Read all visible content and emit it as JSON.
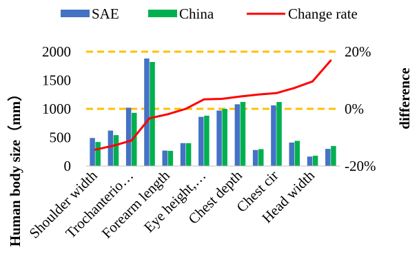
{
  "chart_data": {
    "type": "bar",
    "categories": [
      "Shoulder width",
      "",
      "Trochanterio…",
      "",
      "Forearm length",
      "",
      "Eye height,…",
      "",
      "Chest depth",
      "",
      "Chest cir",
      "",
      "Head width",
      ""
    ],
    "series": [
      {
        "name": "SAE",
        "values": [
          490,
          620,
          1020,
          1880,
          270,
          400,
          860,
          970,
          1080,
          280,
          1060,
          410,
          165,
          300
        ],
        "color": "#4472c4"
      },
      {
        "name": "China",
        "values": [
          420,
          540,
          930,
          1820,
          265,
          400,
          880,
          1000,
          1120,
          295,
          1120,
          440,
          180,
          350
        ],
        "color": "#00b050"
      }
    ],
    "line_series": {
      "name": "Change rate",
      "values": [
        -14.3,
        -12.9,
        -11.1,
        -3.3,
        -1.9,
        0.0,
        3.3,
        3.5,
        4.3,
        5.0,
        5.5,
        7.3,
        9.6,
        16.9
      ],
      "color": "#ff0000",
      "axis": "right"
    },
    "ylabel": "Human body size（mm）",
    "y2label": "difference",
    "ylim": [
      0,
      2000
    ],
    "yticks": [
      0,
      500,
      1000,
      1500,
      2000
    ],
    "y2lim": [
      -20,
      20
    ],
    "y2ticks": [
      "-20%",
      "0%",
      "20%"
    ],
    "y2tick_values": [
      -20,
      0,
      20
    ],
    "reference_lines": {
      "values": [
        0,
        20
      ],
      "color": "#ffc000",
      "style": "dashed"
    },
    "legend_position": "top",
    "grid": false
  }
}
